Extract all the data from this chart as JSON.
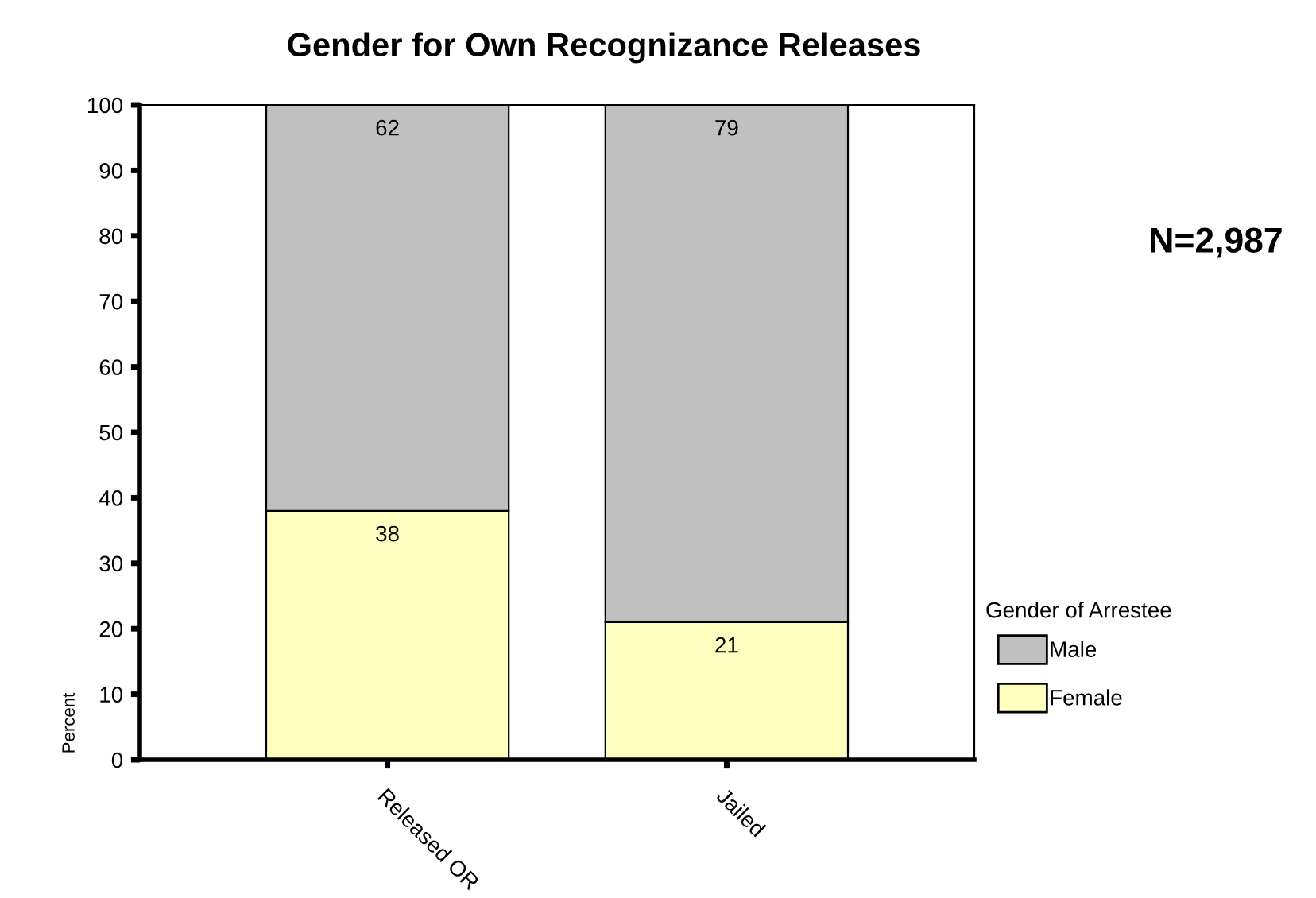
{
  "chart_data": {
    "type": "bar",
    "title": "Gender for Own Recognizance Releases",
    "ylabel": "Percent",
    "legend_title": "Gender of Arrestee",
    "categories": [
      "Released OR",
      "Jailed"
    ],
    "stacked": true,
    "series": [
      {
        "name": "Female",
        "color": "#ffffc0",
        "values": [
          38,
          21
        ]
      },
      {
        "name": "Male",
        "color": "#c0c0c0",
        "values": [
          62,
          79
        ]
      }
    ],
    "ylim": [
      0,
      100
    ],
    "yticks": [
      0,
      10,
      20,
      30,
      40,
      50,
      60,
      70,
      80,
      90,
      100
    ],
    "data_labels": true,
    "legend": "right",
    "grid": false,
    "annotations": [
      "N=2,987"
    ]
  }
}
